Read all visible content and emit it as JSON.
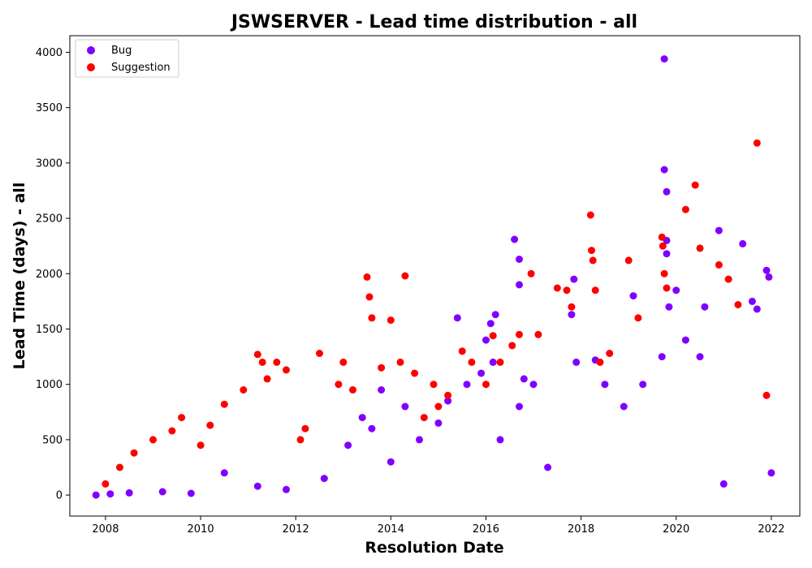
{
  "chart_data": {
    "type": "scatter",
    "title": "JSWSERVER - Lead time distribution - all",
    "xlabel": "Resolution Date",
    "ylabel": "Lead Time (days) - all",
    "xlim": [
      2007.25,
      2022.6
    ],
    "ylim": [
      -190,
      4150
    ],
    "x_ticks": [
      2008,
      2010,
      2012,
      2014,
      2016,
      2018,
      2020,
      2022
    ],
    "y_ticks": [
      0,
      500,
      1000,
      1500,
      2000,
      2500,
      3000,
      3500,
      4000
    ],
    "grid": false,
    "legend_position": "top-left",
    "series": [
      {
        "name": "Bug",
        "color": "#8000ff",
        "x": [
          2007.8,
          2008.1,
          2008.5,
          2009.2,
          2009.8,
          2010.5,
          2011.2,
          2011.8,
          2012.6,
          2013.1,
          2013.4,
          2013.6,
          2014.0,
          2014.3,
          2014.6,
          2015.0,
          2015.4,
          2015.6,
          2015.9,
          2016.0,
          2016.1,
          2016.2,
          2016.3,
          2016.6,
          2016.7,
          2016.7,
          2016.7,
          2016.8,
          2017.0,
          2017.3,
          2017.8,
          2017.85,
          2017.9,
          2018.3,
          2018.5,
          2018.9,
          2019.1,
          2019.3,
          2019.7,
          2019.75,
          2019.75,
          2019.8,
          2019.8,
          2019.8,
          2019.85,
          2020.0,
          2020.2,
          2020.5,
          2020.6,
          2020.9,
          2021.0,
          2021.4,
          2021.6,
          2021.7,
          2021.9,
          2021.95,
          2022.0,
          2013.8,
          2015.2,
          2016.15
        ],
        "y": [
          0,
          10,
          20,
          30,
          15,
          200,
          80,
          50,
          150,
          450,
          700,
          600,
          300,
          800,
          500,
          650,
          1600,
          1000,
          1100,
          1400,
          1550,
          1630,
          500,
          2310,
          2130,
          1900,
          800,
          1050,
          1000,
          250,
          1630,
          1950,
          1200,
          1220,
          1000,
          800,
          1800,
          1000,
          1250,
          3940,
          2940,
          2740,
          2300,
          2180,
          1700,
          1850,
          1400,
          1250,
          1700,
          2390,
          100,
          2270,
          1750,
          1680,
          2030,
          1970,
          200,
          950,
          850,
          1200
        ]
      },
      {
        "name": "Suggestion",
        "color": "#ff0000",
        "x": [
          2008.0,
          2008.3,
          2008.6,
          2009.0,
          2009.4,
          2009.6,
          2010.2,
          2010.5,
          2010.9,
          2011.2,
          2011.3,
          2011.4,
          2011.6,
          2011.8,
          2012.1,
          2012.5,
          2012.9,
          2013.0,
          2013.2,
          2013.5,
          2013.55,
          2013.6,
          2013.8,
          2014.0,
          2014.2,
          2014.3,
          2014.5,
          2014.9,
          2015.2,
          2015.5,
          2015.7,
          2016.0,
          2016.15,
          2016.3,
          2016.55,
          2016.7,
          2016.95,
          2017.1,
          2017.5,
          2017.7,
          2017.8,
          2018.2,
          2018.22,
          2018.25,
          2018.3,
          2018.4,
          2018.6,
          2019.0,
          2019.2,
          2019.7,
          2019.72,
          2019.75,
          2019.8,
          2020.2,
          2020.4,
          2020.5,
          2020.9,
          2021.1,
          2021.3,
          2021.7,
          2021.9,
          2012.2,
          2015.0,
          2010.0,
          2014.7
        ],
        "y": [
          100,
          250,
          380,
          500,
          580,
          700,
          630,
          820,
          950,
          1270,
          1200,
          1050,
          1200,
          1130,
          500,
          1280,
          1000,
          1200,
          950,
          1970,
          1790,
          1600,
          1150,
          1580,
          1200,
          1980,
          1100,
          1000,
          900,
          1300,
          1200,
          1000,
          1440,
          1200,
          1350,
          1450,
          2000,
          1450,
          1870,
          1850,
          1700,
          2530,
          2210,
          2120,
          1850,
          1200,
          1280,
          2120,
          1600,
          2330,
          2250,
          2000,
          1870,
          2580,
          2800,
          2230,
          2080,
          1950,
          1720,
          3180,
          900,
          600,
          800,
          450,
          700
        ]
      }
    ]
  }
}
